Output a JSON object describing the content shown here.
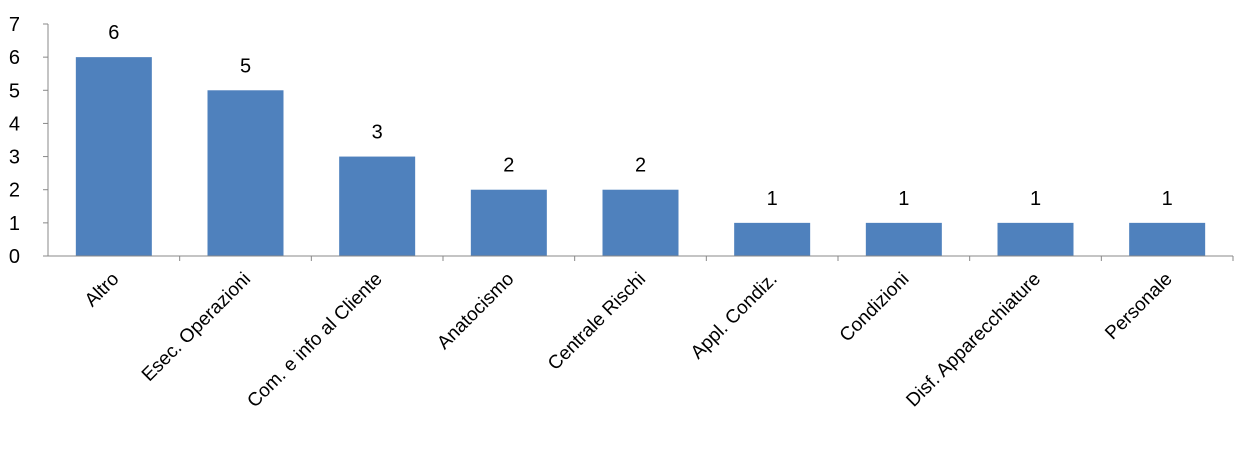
{
  "chart_data": {
    "type": "bar",
    "title": "",
    "xlabel": "",
    "ylabel": "",
    "categories": [
      "Altro",
      "Esec. Operazioni",
      "Com. e info al Cliente",
      "Anatocismo",
      "Centrale Rischi",
      "Appl. Condiz.",
      "Condizioni",
      "Disf. Apparecchiature",
      "Personale"
    ],
    "values": [
      6,
      5,
      3,
      2,
      2,
      1,
      1,
      1,
      1
    ],
    "ylim": [
      0,
      7
    ],
    "yticks": [
      "0",
      "1",
      "2",
      "3",
      "4",
      "5",
      "6",
      "7"
    ],
    "data_labels": [
      "6",
      "5",
      "3",
      "2",
      "2",
      "1",
      "1",
      "1",
      "1"
    ],
    "grid": false,
    "legend": "none",
    "colors": {
      "bar": "#4F81BD",
      "axis": "#888888"
    }
  }
}
